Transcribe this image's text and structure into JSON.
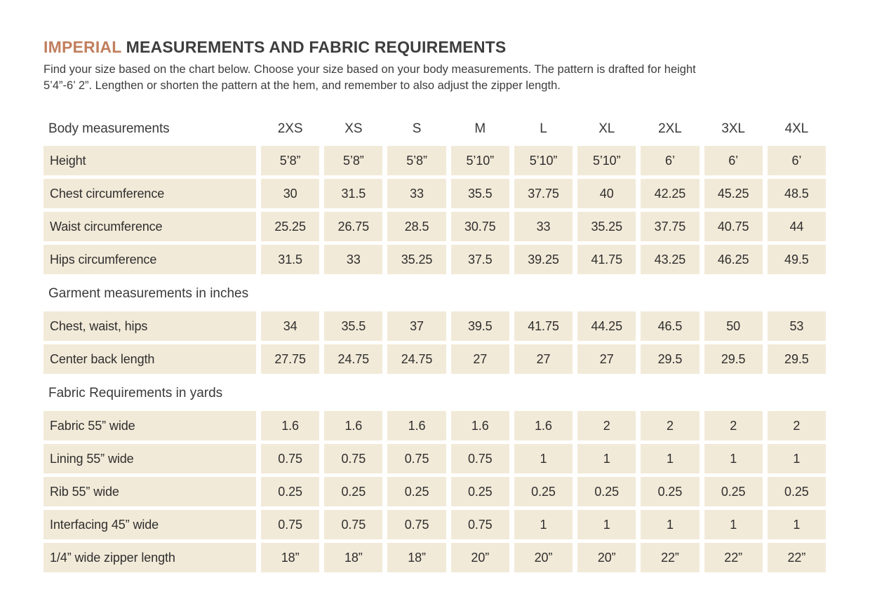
{
  "title": {
    "highlight": "IMPERIAL",
    "rest": "MEASUREMENTS AND FABRIC REQUIREMENTS"
  },
  "intro": {
    "line1": "Find your size based on the chart below. Choose your size based on your body measurements. The pattern is drafted for height",
    "line2": "5’4”-6’ 2”. Lengthen or shorten the pattern at the hem, and remember to also adjust the zipper length."
  },
  "sizes": [
    "2XS",
    "XS",
    "S",
    "M",
    "L",
    "XL",
    "2XL",
    "3XL",
    "4XL"
  ],
  "sections": [
    {
      "heading": "Body measurements",
      "is_header_row": true,
      "rows": [
        {
          "label": "Height",
          "values": [
            "5’8”",
            "5’8”",
            "5’8”",
            "5’10”",
            "5’10”",
            "5’10”",
            "6’",
            "6’",
            "6’"
          ]
        },
        {
          "label": "Chest circumference",
          "values": [
            "30",
            "31.5",
            "33",
            "35.5",
            "37.75",
            "40",
            "42.25",
            "45.25",
            "48.5"
          ]
        },
        {
          "label": "Waist circumference",
          "values": [
            "25.25",
            "26.75",
            "28.5",
            "30.75",
            "33",
            "35.25",
            "37.75",
            "40.75",
            "44"
          ]
        },
        {
          "label": "Hips circumference",
          "values": [
            "31.5",
            "33",
            "35.25",
            "37.5",
            "39.25",
            "41.75",
            "43.25",
            "46.25",
            "49.5"
          ]
        }
      ]
    },
    {
      "heading": "Garment measurements in inches",
      "is_header_row": false,
      "rows": [
        {
          "label": "Chest, waist, hips",
          "values": [
            "34",
            "35.5",
            "37",
            "39.5",
            "41.75",
            "44.25",
            "46.5",
            "50",
            "53"
          ]
        },
        {
          "label": "Center back length",
          "values": [
            "27.75",
            "24.75",
            "24.75",
            "27",
            "27",
            "27",
            "29.5",
            "29.5",
            "29.5"
          ]
        }
      ]
    },
    {
      "heading": "Fabric Requirements in yards",
      "is_header_row": false,
      "rows": [
        {
          "label": "Fabric 55” wide",
          "values": [
            "1.6",
            "1.6",
            "1.6",
            "1.6",
            "1.6",
            "2",
            "2",
            "2",
            "2"
          ]
        },
        {
          "label": "Lining 55” wide",
          "values": [
            "0.75",
            "0.75",
            "0.75",
            "0.75",
            "1",
            "1",
            "1",
            "1",
            "1"
          ]
        },
        {
          "label": "Rib 55” wide",
          "values": [
            "0.25",
            "0.25",
            "0.25",
            "0.25",
            "0.25",
            "0.25",
            "0.25",
            "0.25",
            "0.25"
          ]
        },
        {
          "label": "Interfacing 45” wide",
          "values": [
            "0.75",
            "0.75",
            "0.75",
            "0.75",
            "1",
            "1",
            "1",
            "1",
            "1"
          ]
        },
        {
          "label": "1/4” wide zipper length",
          "values": [
            "18”",
            "18”",
            "18”",
            "20”",
            "20”",
            "20”",
            "22”",
            "22”",
            "22”"
          ]
        }
      ]
    }
  ],
  "colors": {
    "accent": "#c17f5e",
    "cell_background": "#f2ead8",
    "text": "#3a3a3a",
    "page_background": "#ffffff"
  }
}
